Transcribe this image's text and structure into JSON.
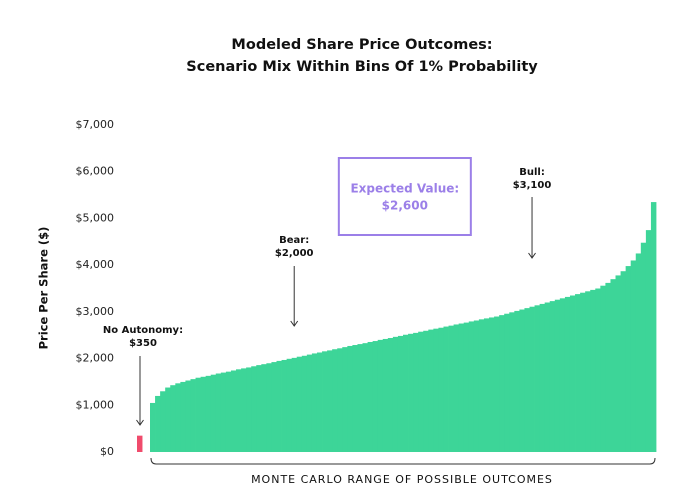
{
  "chart_data": {
    "type": "bar",
    "title": [
      "Modeled Share Price Outcomes:",
      "Scenario Mix Within Bins Of 1% Probability"
    ],
    "y_label": "Price Per Share ($)",
    "x_label": "MONTE CARLO RANGE OF POSSIBLE OUTCOMES",
    "ylim": [
      0,
      7000
    ],
    "yticks": [
      {
        "value": 0,
        "label": "$0"
      },
      {
        "value": 1000,
        "label": "$1,000"
      },
      {
        "value": 2000,
        "label": "$2,000"
      },
      {
        "value": 3000,
        "label": "$3,000"
      },
      {
        "value": 4000,
        "label": "$4,000"
      },
      {
        "value": 5000,
        "label": "$5,000"
      },
      {
        "value": 6000,
        "label": "$6,000"
      },
      {
        "value": 7000,
        "label": "$7,000"
      }
    ],
    "color": "#3dd598",
    "highlight_color": "#f04b6c",
    "values": [
      1050,
      1200,
      1300,
      1380,
      1430,
      1470,
      1500,
      1530,
      1560,
      1590,
      1610,
      1630,
      1655,
      1680,
      1700,
      1720,
      1745,
      1770,
      1790,
      1810,
      1835,
      1860,
      1880,
      1900,
      1925,
      1950,
      1970,
      1995,
      2015,
      2040,
      2060,
      2085,
      2110,
      2130,
      2155,
      2175,
      2200,
      2220,
      2245,
      2270,
      2290,
      2310,
      2330,
      2355,
      2375,
      2400,
      2420,
      2440,
      2465,
      2485,
      2510,
      2530,
      2550,
      2575,
      2595,
      2620,
      2640,
      2660,
      2685,
      2705,
      2730,
      2750,
      2770,
      2795,
      2815,
      2840,
      2860,
      2880,
      2900,
      2930,
      2960,
      2990,
      3020,
      3050,
      3080,
      3110,
      3140,
      3170,
      3200,
      3230,
      3260,
      3290,
      3320,
      3350,
      3380,
      3410,
      3440,
      3470,
      3500,
      3560,
      3620,
      3700,
      3780,
      3870,
      3980,
      4100,
      4250,
      4480,
      4750,
      5350
    ],
    "annotations": [
      {
        "label": "No Autonomy:",
        "value_label": "$350",
        "value": 350
      },
      {
        "label": "Bear:",
        "value_label": "$2,000",
        "value": 2000
      },
      {
        "label": "Bull:",
        "value_label": "$3,100",
        "value": 3100
      }
    ],
    "expected_value": {
      "label": "Expected Value:",
      "value_label": "$2,600",
      "value": 2600,
      "color": "#9b7fe8"
    }
  }
}
